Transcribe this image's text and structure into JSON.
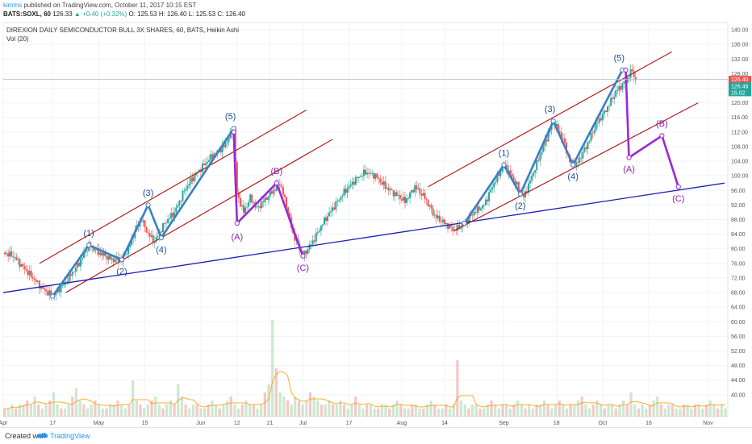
{
  "header": {
    "user": "kimms",
    "published": "published on TradingView.com, October 11, 2017 10:15 EST",
    "symbol": "BATS:SOXL, 60",
    "last": "126.33",
    "change": "▲ +0.40 (+0.32%)",
    "ohlc": "O: 125.53  H: 126.40  L: 125.53  C: 126.40"
  },
  "footer": {
    "created": "Created with",
    "brand": "TradingView"
  },
  "chart_data": {
    "type": "candlestick",
    "title": "DIREXION DAILY SEMICONDUCTOR BULL 3X SHARES, 60, BATS, Heikin Ashi",
    "volume_label": "Vol (20)",
    "ylim": [
      34,
      142
    ],
    "y_ticks": [
      "140.00",
      "136.00",
      "132.00",
      "128.00",
      "124.00",
      "120.00",
      "116.00",
      "112.00",
      "108.00",
      "104.00",
      "100.00",
      "96.00",
      "92.00",
      "88.00",
      "84.00",
      "80.00",
      "76.00",
      "72.00",
      "68.00",
      "64.00",
      "60.00",
      "56.00",
      "52.00",
      "48.00",
      "44.00",
      "40.00"
    ],
    "x_ticks": [
      {
        "label": "Apr",
        "t": 0
      },
      {
        "label": "17",
        "t": 15
      },
      {
        "label": "May",
        "t": 29
      },
      {
        "label": "15",
        "t": 43
      },
      {
        "label": "Jun",
        "t": 60
      },
      {
        "label": "12",
        "t": 71
      },
      {
        "label": "21",
        "t": 81
      },
      {
        "label": "Jul",
        "t": 91
      },
      {
        "label": "17",
        "t": 105
      },
      {
        "label": "Aug",
        "t": 121
      },
      {
        "label": "14",
        "t": 134
      },
      {
        "label": "Sep",
        "t": 152
      },
      {
        "label": "18",
        "t": 168
      },
      {
        "label": "Oct",
        "t": 182
      },
      {
        "label": "16",
        "t": 196
      },
      {
        "label": "Nov",
        "t": 214
      }
    ],
    "price_path": [
      [
        0,
        79
      ],
      [
        3,
        78
      ],
      [
        6,
        75
      ],
      [
        9,
        72
      ],
      [
        12,
        69
      ],
      [
        15,
        67
      ],
      [
        19,
        71
      ],
      [
        23,
        76
      ],
      [
        26,
        81
      ],
      [
        29,
        79
      ],
      [
        33,
        77
      ],
      [
        36,
        77
      ],
      [
        38,
        80
      ],
      [
        40,
        85
      ],
      [
        42,
        88
      ],
      [
        44,
        84
      ],
      [
        46,
        82
      ],
      [
        49,
        87
      ],
      [
        52,
        90
      ],
      [
        55,
        96
      ],
      [
        58,
        100
      ],
      [
        61,
        103
      ],
      [
        64,
        106
      ],
      [
        67,
        108
      ],
      [
        70,
        113
      ],
      [
        71,
        95
      ],
      [
        73,
        90
      ],
      [
        75,
        94
      ],
      [
        77,
        91
      ],
      [
        79,
        93
      ],
      [
        81,
        95
      ],
      [
        84,
        98
      ],
      [
        86,
        92
      ],
      [
        88,
        84
      ],
      [
        91,
        78
      ],
      [
        94,
        82
      ],
      [
        97,
        87
      ],
      [
        100,
        91
      ],
      [
        103,
        95
      ],
      [
        107,
        99
      ],
      [
        110,
        101
      ],
      [
        113,
        100
      ],
      [
        116,
        97
      ],
      [
        119,
        95
      ],
      [
        122,
        93
      ],
      [
        125,
        97
      ],
      [
        128,
        94
      ],
      [
        131,
        89
      ],
      [
        134,
        87
      ],
      [
        137,
        85
      ],
      [
        140,
        87
      ],
      [
        143,
        90
      ],
      [
        146,
        92
      ],
      [
        149,
        98
      ],
      [
        152,
        103
      ],
      [
        155,
        99
      ],
      [
        158,
        94
      ],
      [
        161,
        101
      ],
      [
        164,
        108
      ],
      [
        167,
        115
      ],
      [
        170,
        110
      ],
      [
        172,
        104
      ],
      [
        174,
        103
      ],
      [
        177,
        108
      ],
      [
        180,
        114
      ],
      [
        183,
        118
      ],
      [
        186,
        123
      ],
      [
        189,
        126
      ],
      [
        191,
        129
      ],
      [
        192,
        126
      ]
    ],
    "volume": [
      2,
      2,
      3,
      2,
      3,
      3,
      4,
      3,
      5,
      3,
      2,
      3,
      4,
      6,
      3,
      2,
      2,
      3,
      5,
      7,
      4,
      3,
      2,
      3,
      4,
      3,
      2,
      2,
      3,
      3,
      4,
      3,
      2,
      3,
      9,
      4,
      3,
      2,
      3,
      4,
      5,
      3,
      2,
      3,
      4,
      3,
      8,
      5,
      3,
      2,
      3,
      3,
      2,
      2,
      3,
      4,
      3,
      2,
      3,
      4,
      5,
      3,
      2,
      3,
      4,
      3,
      3,
      2,
      3,
      6,
      8,
      24,
      12,
      6,
      5,
      4,
      3,
      5,
      4,
      3,
      4,
      6,
      5,
      4,
      3,
      3,
      4,
      3,
      3,
      4,
      3,
      2,
      3,
      5,
      3,
      2,
      3,
      3,
      2,
      2,
      3,
      3,
      2,
      3,
      4,
      3,
      2,
      2,
      3,
      3,
      2,
      2,
      3,
      4,
      3,
      2,
      2,
      3,
      2,
      3,
      14,
      4,
      3,
      2,
      3,
      3,
      2,
      2,
      3,
      4,
      3,
      2,
      3,
      3,
      2,
      3,
      4,
      3,
      2,
      3,
      2,
      3,
      3,
      4,
      3,
      2,
      3,
      4,
      3,
      2,
      3,
      3,
      4,
      5,
      3,
      2,
      3,
      4,
      3,
      2,
      3,
      3,
      2,
      3,
      4,
      3,
      6,
      3,
      2,
      3,
      2,
      3,
      4,
      5,
      3,
      2,
      3,
      3,
      2,
      2,
      3,
      3,
      2,
      3,
      3,
      2,
      3,
      4,
      3,
      2,
      3,
      2
    ],
    "price_tags": [
      {
        "value": "126.40",
        "price": 126.4,
        "color": "#ef5350"
      },
      {
        "value": "126.49",
        "price": 124.6,
        "color": "#26a69a"
      },
      {
        "value": "15.02",
        "price": 122.8,
        "color": "#26a69a"
      }
    ],
    "annotations": {
      "waves_blue": [
        [
          [
            15,
            67
          ],
          [
            26,
            81
          ],
          [
            36,
            77
          ],
          [
            44,
            92
          ],
          [
            48,
            83
          ],
          [
            70,
            113
          ]
        ],
        [
          [
            140,
            87
          ],
          [
            152,
            103
          ],
          [
            157,
            95
          ],
          [
            167,
            115
          ],
          [
            173,
            103
          ],
          [
            188,
            129
          ]
        ]
      ],
      "waves_purple": [
        [
          [
            70,
            112
          ],
          [
            71,
            87
          ],
          [
            83,
            98
          ],
          [
            91,
            78
          ]
        ],
        [
          [
            189,
            129
          ],
          [
            190,
            105
          ],
          [
            200,
            111
          ],
          [
            205,
            97
          ]
        ]
      ],
      "wave_labels": [
        {
          "text": "(1)",
          "t": 26,
          "p": 83.5,
          "color": "#1f4e9a"
        },
        {
          "text": "(2)",
          "t": 36,
          "p": 73,
          "color": "#1f4e9a"
        },
        {
          "text": "(3)",
          "t": 44,
          "p": 94.5,
          "color": "#1f4e9a"
        },
        {
          "text": "(4)",
          "t": 48,
          "p": 79,
          "color": "#1f4e9a"
        },
        {
          "text": "(5)",
          "t": 69,
          "p": 115.5,
          "color": "#1f4e9a"
        },
        {
          "text": "(A)",
          "t": 71,
          "p": 82.5,
          "color": "#8e24aa"
        },
        {
          "text": "(B)",
          "t": 83,
          "p": 100.5,
          "color": "#8e24aa"
        },
        {
          "text": "(C)",
          "t": 91,
          "p": 74,
          "color": "#8e24aa"
        },
        {
          "text": "(1)",
          "t": 152,
          "p": 105.5,
          "color": "#1f4e9a"
        },
        {
          "text": "(2)",
          "t": 157,
          "p": 91,
          "color": "#1f4e9a"
        },
        {
          "text": "(3)",
          "t": 166,
          "p": 117.5,
          "color": "#1f4e9a"
        },
        {
          "text": "(4)",
          "t": 173,
          "p": 99,
          "color": "#1f4e9a"
        },
        {
          "text": "(5)",
          "t": 187,
          "p": 131.5,
          "color": "#1f4e9a"
        },
        {
          "text": "(A)",
          "t": 190,
          "p": 101,
          "color": "#8e24aa"
        },
        {
          "text": "(B)",
          "t": 200,
          "p": 113.5,
          "color": "#8e24aa"
        },
        {
          "text": "(C)",
          "t": 205,
          "p": 93,
          "color": "#8e24aa"
        }
      ],
      "channels_red": [
        [
          [
            11,
            76
          ],
          [
            92,
            118
          ]
        ],
        [
          [
            19,
            68
          ],
          [
            100,
            110
          ]
        ],
        [
          [
            129,
            97
          ],
          [
            203,
            134
          ]
        ],
        [
          [
            137,
            85
          ],
          [
            211,
            120
          ]
        ]
      ],
      "trendline_blue": [
        [
          0,
          68
        ],
        [
          219,
          98
        ]
      ]
    }
  }
}
